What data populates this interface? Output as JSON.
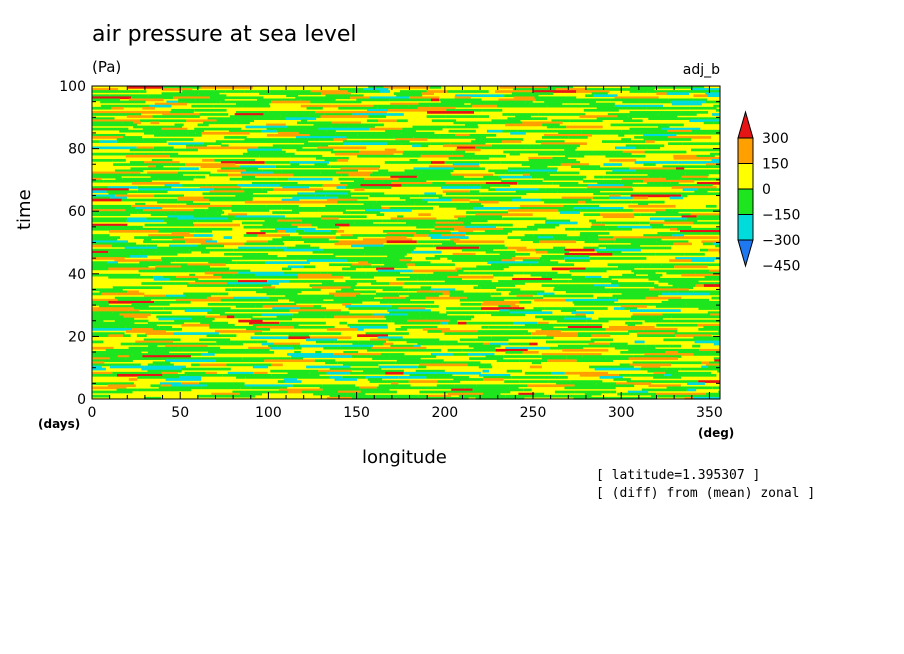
{
  "chart_data": {
    "type": "heatmap",
    "title": "air pressure at sea level",
    "units": "(Pa)",
    "tag": "adj_b",
    "xlabel": "longitude",
    "ylabel": "time",
    "x_unit": "(deg)",
    "y_unit": "(days)",
    "xlim": [
      0,
      356
    ],
    "ylim": [
      0,
      100
    ],
    "xticks": [
      0,
      50,
      100,
      150,
      200,
      250,
      300,
      350
    ],
    "yticks": [
      0,
      20,
      40,
      60,
      80,
      100
    ],
    "notes": [
      "[ latitude=1.395307 ]",
      "[ (diff) from (mean) zonal ]"
    ],
    "colorbar": {
      "labels": [
        "300",
        "150",
        "0",
        "−150",
        "−300",
        "−450"
      ],
      "levels": [
        -450,
        -300,
        -150,
        0,
        150,
        300
      ],
      "colors": [
        "#1e78f0",
        "#00dcdc",
        "#1ee61e",
        "#ffff00",
        "#ffa000",
        "#e61414"
      ]
    },
    "field_description_levels": "values mostly between -150 and 150 with sparse patches reaching -300 and 300"
  }
}
